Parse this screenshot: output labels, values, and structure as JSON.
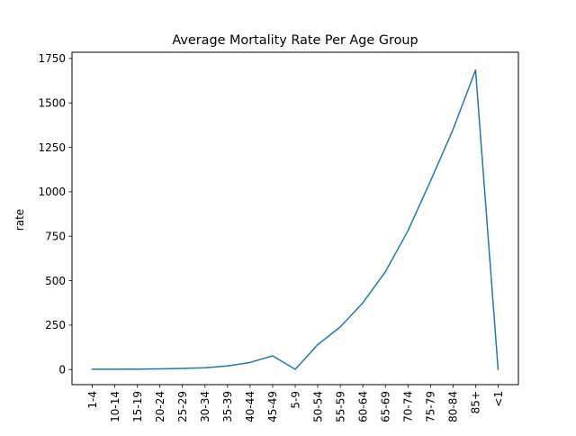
{
  "chart_data": {
    "type": "line",
    "title": "Average Mortality Rate Per Age Group",
    "xlabel": "",
    "ylabel": "rate",
    "categories": [
      "1-4",
      "10-14",
      "15-19",
      "20-24",
      "25-29",
      "30-34",
      "35-39",
      "40-44",
      "45-49",
      "5-9",
      "50-54",
      "55-59",
      "60-64",
      "65-69",
      "70-74",
      "75-79",
      "80-84",
      "85+",
      "<1"
    ],
    "series": [
      {
        "values": [
          1.5,
          1.5,
          2.5,
          4,
          6,
          10,
          20,
          40,
          77,
          1,
          140,
          240,
          375,
          550,
          780,
          1060,
          1350,
          1685,
          1
        ],
        "color": "#1f77b4"
      }
    ],
    "ylim": [
      -85,
      1785
    ],
    "yticks": [
      0,
      250,
      500,
      750,
      1000,
      1250,
      1500,
      1750
    ],
    "grid": false,
    "legend": "none"
  }
}
